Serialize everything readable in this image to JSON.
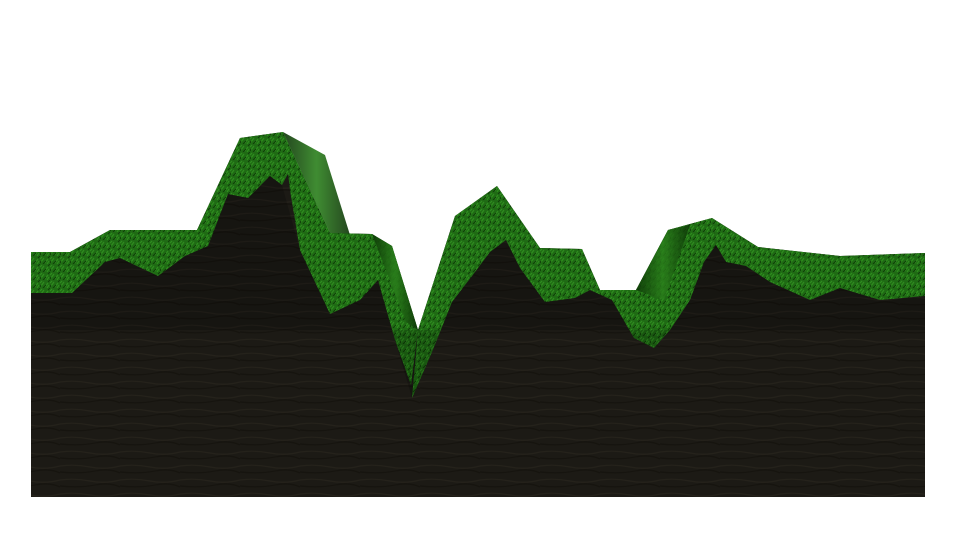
{
  "scene": {
    "background_color": "#ffffff",
    "terrain": {
      "soil_color": "#1c1a15",
      "soil_color_dark": "#14120e",
      "grass_color": "#1f6b14",
      "grass_color_light": "#2f8f1f",
      "grass_color_dark": "#123f0b"
    }
  }
}
